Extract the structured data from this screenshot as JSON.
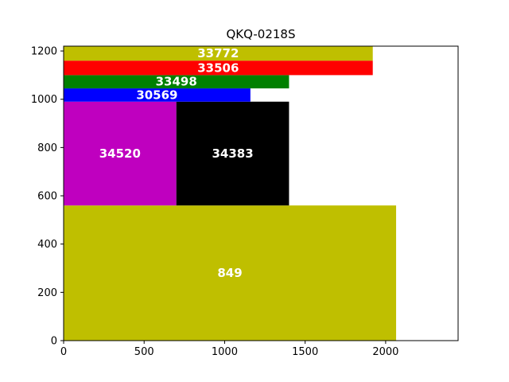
{
  "chart_data": {
    "type": "bar",
    "subtype": "stacked-rectangle-packing",
    "title": "QKQ-0218S",
    "xlabel": "",
    "ylabel": "",
    "xlim": [
      0,
      2450
    ],
    "ylim": [
      0,
      1220
    ],
    "xticks": [
      0,
      500,
      1000,
      1500,
      2000
    ],
    "yticks": [
      0,
      200,
      400,
      600,
      800,
      1000,
      1200
    ],
    "grid": false,
    "legend": "none",
    "rects": [
      {
        "label": "849",
        "x0": 0,
        "x1": 2065,
        "y0": 0,
        "y1": 560,
        "color": "#bfbf00"
      },
      {
        "label": "34520",
        "x0": 0,
        "x1": 700,
        "y0": 560,
        "y1": 990,
        "color": "#bf00bf"
      },
      {
        "label": "34383",
        "x0": 700,
        "x1": 1400,
        "y0": 560,
        "y1": 990,
        "color": "#000000"
      },
      {
        "label": "30569",
        "x0": 0,
        "x1": 1160,
        "y0": 990,
        "y1": 1045,
        "color": "#0000ff"
      },
      {
        "label": "33498",
        "x0": 0,
        "x1": 1400,
        "y0": 1045,
        "y1": 1100,
        "color": "#008000"
      },
      {
        "label": "33506",
        "x0": 0,
        "x1": 1920,
        "y0": 1100,
        "y1": 1160,
        "color": "#ff0000"
      },
      {
        "label": "33772",
        "x0": 0,
        "x1": 1920,
        "y0": 1160,
        "y1": 1220,
        "color": "#bfbf00"
      }
    ]
  }
}
